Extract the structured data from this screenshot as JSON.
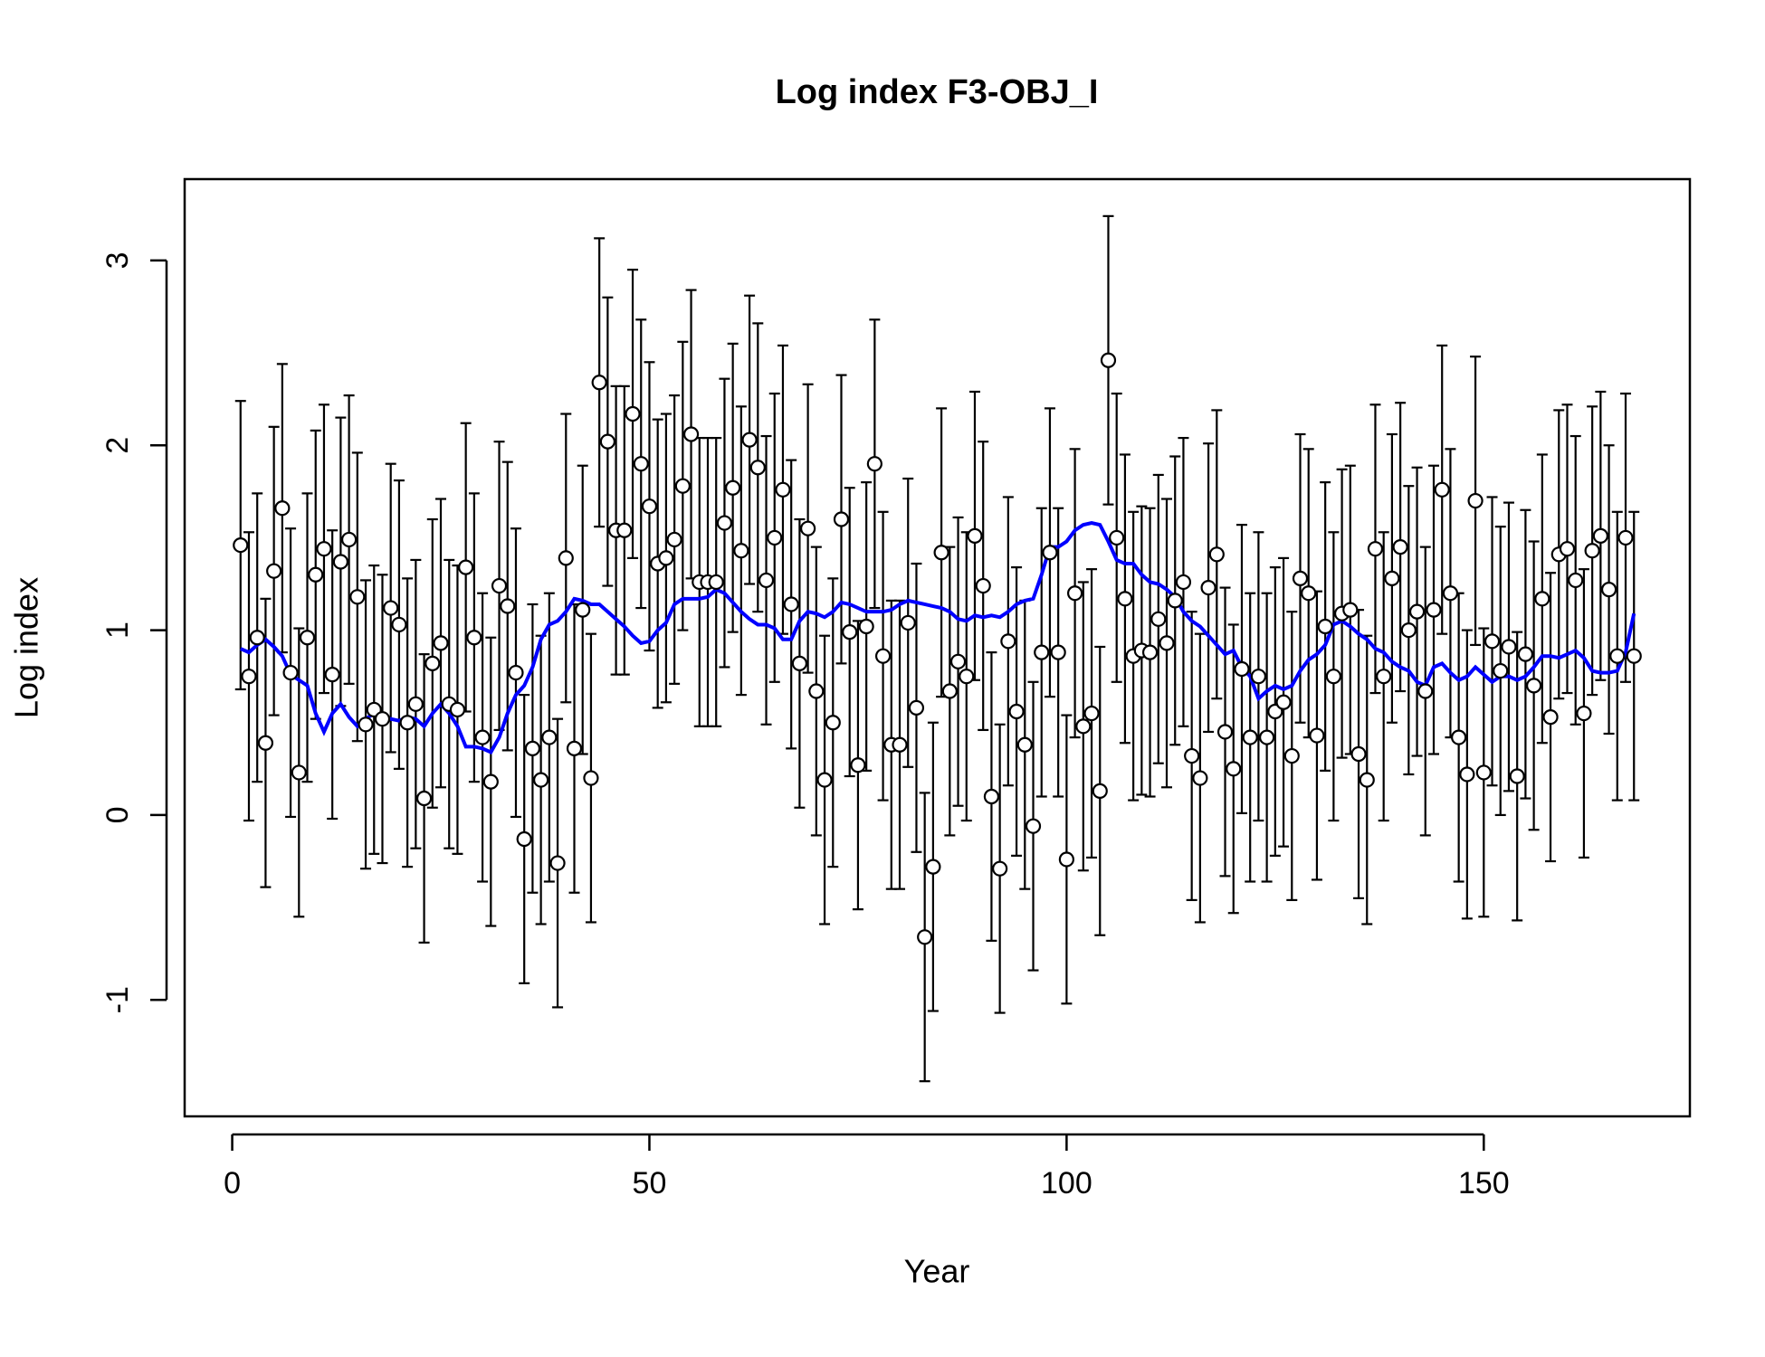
{
  "chart_data": {
    "type": "errorbar",
    "title": "Log index F3-OBJ_I",
    "x_label": "Year",
    "y_label": "Log index",
    "x": [
      1,
      2,
      3,
      4,
      5,
      6,
      7,
      8,
      9,
      10,
      11,
      12,
      13,
      14,
      15,
      16,
      17,
      18,
      19,
      20,
      21,
      22,
      23,
      24,
      25,
      26,
      27,
      28,
      29,
      30,
      31,
      32,
      33,
      34,
      35,
      36,
      37,
      38,
      39,
      40,
      41,
      42,
      43,
      44,
      45,
      46,
      47,
      48,
      49,
      50,
      51,
      52,
      53,
      54,
      55,
      56,
      57,
      58,
      59,
      60,
      61,
      62,
      63,
      64,
      65,
      66,
      67,
      68,
      69,
      70,
      71,
      72,
      73,
      74,
      75,
      76,
      77,
      78,
      79,
      80,
      81,
      82,
      83,
      84,
      85,
      86,
      87,
      88,
      89,
      90,
      91,
      92,
      93,
      94,
      95,
      96,
      97,
      98,
      99,
      100,
      101,
      102,
      103,
      104,
      105,
      106,
      107,
      108,
      109,
      110,
      111,
      112,
      113,
      114,
      115,
      116,
      117,
      118,
      119,
      120,
      121,
      122,
      123,
      124,
      125,
      126,
      127,
      128,
      129,
      130,
      131,
      132,
      133,
      134,
      135,
      136,
      137,
      138,
      139,
      140,
      141,
      142,
      143,
      144,
      145,
      146,
      147,
      148,
      149,
      150,
      151,
      152,
      153,
      154,
      155,
      156,
      157,
      158,
      159,
      160,
      161,
      162,
      163,
      164,
      165,
      166,
      167,
      168
    ],
    "observed": {
      "color": "#000000",
      "error": 0.78,
      "values": [
        1.46,
        0.75,
        0.96,
        0.39,
        1.32,
        1.66,
        0.77,
        0.23,
        0.96,
        1.3,
        1.44,
        0.76,
        1.37,
        1.49,
        1.18,
        0.49,
        0.57,
        0.52,
        1.12,
        1.03,
        0.5,
        0.6,
        0.09,
        0.82,
        0.93,
        0.6,
        0.57,
        1.34,
        0.96,
        0.42,
        0.18,
        1.24,
        1.13,
        0.77,
        -0.13,
        0.36,
        0.19,
        0.42,
        -0.26,
        1.39,
        0.36,
        1.11,
        0.2,
        2.34,
        2.02,
        1.54,
        1.54,
        2.17,
        1.9,
        1.67,
        1.36,
        1.39,
        1.49,
        1.78,
        2.06,
        1.26,
        1.26,
        1.26,
        1.58,
        1.77,
        1.43,
        2.03,
        1.88,
        1.27,
        1.5,
        1.76,
        1.14,
        0.82,
        1.55,
        0.67,
        0.19,
        0.5,
        1.6,
        0.99,
        0.27,
        1.02,
        1.9,
        0.86,
        0.38,
        0.38,
        1.04,
        0.58,
        -0.66,
        -0.28,
        1.42,
        0.67,
        0.83,
        0.75,
        1.51,
        1.24,
        0.1,
        -0.29,
        0.94,
        0.56,
        0.38,
        -0.06,
        0.88,
        1.42,
        0.88,
        -0.24,
        1.2,
        0.48,
        0.55,
        0.13,
        2.46,
        1.5,
        1.17,
        0.86,
        0.89,
        0.88,
        1.06,
        0.93,
        1.16,
        1.26,
        0.32,
        0.2,
        1.23,
        1.41,
        0.45,
        0.25,
        0.79,
        0.42,
        0.75,
        0.42,
        0.56,
        0.61,
        0.32,
        1.28,
        1.2,
        0.43,
        1.02,
        0.75,
        1.09,
        1.11,
        0.33,
        0.19,
        1.44,
        0.75,
        1.28,
        1.45,
        1.0,
        1.1,
        0.67,
        1.11,
        1.76,
        1.2,
        0.42,
        0.22,
        1.7,
        0.23,
        0.94,
        0.78,
        0.91,
        0.21,
        0.87,
        0.7,
        1.17,
        0.53,
        1.41,
        1.44,
        1.27,
        0.55,
        1.43,
        1.51,
        1.22,
        0.86,
        1.5,
        0.86
      ]
    },
    "fitted": {
      "color": "#0000ff",
      "values": [
        0.9,
        0.88,
        0.92,
        0.95,
        0.91,
        0.86,
        0.76,
        0.73,
        0.7,
        0.55,
        0.45,
        0.55,
        0.6,
        0.53,
        0.48,
        0.52,
        0.55,
        0.53,
        0.52,
        0.51,
        0.53,
        0.52,
        0.48,
        0.55,
        0.6,
        0.55,
        0.48,
        0.37,
        0.37,
        0.36,
        0.34,
        0.42,
        0.55,
        0.65,
        0.7,
        0.8,
        0.95,
        1.03,
        1.05,
        1.1,
        1.17,
        1.16,
        1.14,
        1.14,
        1.1,
        1.06,
        1.02,
        0.97,
        0.93,
        0.94,
        1.0,
        1.04,
        1.14,
        1.17,
        1.17,
        1.17,
        1.18,
        1.22,
        1.2,
        1.15,
        1.1,
        1.06,
        1.03,
        1.03,
        1.01,
        0.95,
        0.95,
        1.05,
        1.1,
        1.09,
        1.07,
        1.1,
        1.15,
        1.14,
        1.12,
        1.1,
        1.1,
        1.1,
        1.11,
        1.14,
        1.16,
        1.15,
        1.14,
        1.13,
        1.12,
        1.1,
        1.06,
        1.05,
        1.08,
        1.07,
        1.08,
        1.07,
        1.1,
        1.14,
        1.16,
        1.17,
        1.3,
        1.45,
        1.45,
        1.48,
        1.54,
        1.57,
        1.58,
        1.57,
        1.48,
        1.38,
        1.36,
        1.36,
        1.3,
        1.26,
        1.25,
        1.22,
        1.18,
        1.1,
        1.05,
        1.02,
        0.97,
        0.92,
        0.87,
        0.89,
        0.8,
        0.75,
        0.63,
        0.67,
        0.7,
        0.68,
        0.7,
        0.78,
        0.84,
        0.87,
        0.92,
        1.03,
        1.05,
        1.02,
        0.98,
        0.95,
        0.9,
        0.88,
        0.83,
        0.8,
        0.78,
        0.72,
        0.7,
        0.8,
        0.82,
        0.77,
        0.73,
        0.75,
        0.8,
        0.76,
        0.72,
        0.75,
        0.75,
        0.73,
        0.75,
        0.8,
        0.86,
        0.86,
        0.85,
        0.87,
        0.89,
        0.85,
        0.78,
        0.77,
        0.77,
        0.78,
        0.88,
        1.09
      ]
    },
    "xlim": [
      -5.7,
      174.7
    ],
    "ylim": [
      -1.63,
      3.44
    ],
    "xticks": [
      0,
      50,
      100,
      150
    ],
    "yticks": [
      -1,
      0,
      1,
      2,
      3
    ]
  }
}
